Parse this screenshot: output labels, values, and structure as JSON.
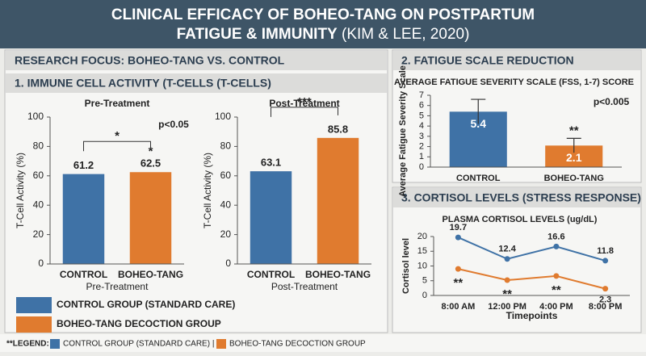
{
  "title": [
    "CLINICAL EFFICACY OF BOHEO-TANG ON POSTPARTUM",
    "FATIGUE & IMMUNITY"
  ],
  "citation": "(KIM & LEE, 2020)",
  "research_focus": "RESEARCH FOCUS: BOHEO-TANG VS. CONTROL",
  "sections": [
    "1. IMMUNE CELL ACTIVITY (T-CELLS (T-CELLS)",
    "2. FATIGUE SCALE REDUCTION",
    "3. CORTISOL LEVELS (STRESS RESPONSE)"
  ],
  "legend": {
    "items": [
      {
        "label": "CONTROL GROUP (STANDARD CARE)",
        "color": "#3f72a6"
      },
      {
        "label": "BOHEO-TANG DECOCTION GROUP",
        "color": "#e07b2f"
      }
    ]
  },
  "footer_legend": {
    "title": "**LEGEND:",
    "items": [
      "CONTROL GROUP (STANDARD CARE) |",
      "BOHEO-TANG DECOCTION GROUP"
    ]
  },
  "chart_data": [
    {
      "type": "bar",
      "title": "Pre-Treatment",
      "xlabel": "Pre-Treatment",
      "ylabel": "T-Cell Activity (%)",
      "categories": [
        "CONTROL",
        "BOHEO-TANG"
      ],
      "values": [
        61.2,
        62.5
      ],
      "colors": [
        "#3f72a6",
        "#e07b2f"
      ],
      "ylim": [
        0,
        100
      ],
      "yticks": [
        0,
        20,
        40,
        60,
        80,
        100
      ],
      "annotation": "p<0.05",
      "bracket_label": "*",
      "significance": [
        null,
        "*"
      ],
      "value_label_position": "outside"
    },
    {
      "type": "bar",
      "title": "Post-Treatment",
      "xlabel": "Post-Treatment",
      "ylabel": "T-Cell Activity (%)",
      "categories": [
        "CONTROL",
        "BOHEO-TANG"
      ],
      "values": [
        63.1,
        85.8
      ],
      "colors": [
        "#3f72a6",
        "#e07b2f"
      ],
      "ylim": [
        0,
        100
      ],
      "yticks": [
        0,
        20,
        40,
        60,
        80,
        100
      ],
      "bracket_label": "***",
      "value_label_position": "outside"
    },
    {
      "type": "bar",
      "title": "AVERAGE FATIGUE SEVERITY SCALE (FSS, 1-7) SCORE",
      "ylabel": "Average Fatigue Severity Scale",
      "categories": [
        "CONTROL",
        "BOHEO-TANG"
      ],
      "values": [
        5.4,
        2.1
      ],
      "errors": [
        1.2,
        0.7
      ],
      "colors": [
        "#3f72a6",
        "#e07b2f"
      ],
      "ylim": [
        0,
        7
      ],
      "yticks": [
        0,
        1,
        2,
        3,
        4,
        5,
        6,
        7
      ],
      "annotation": "p<0.005",
      "significance": [
        null,
        "**"
      ],
      "value_label_position": "inside"
    },
    {
      "type": "line",
      "title": "PLASMA CORTISOL LEVELS (ug/dL)",
      "xlabel": "Timepoints",
      "ylabel": "Cortisol level",
      "categories": [
        "8:00 AM",
        "12:00 PM",
        "4:00 PM",
        "8:00 PM"
      ],
      "ylim": [
        0,
        20
      ],
      "yticks": [
        0,
        5,
        10,
        15,
        20
      ],
      "series": [
        {
          "name": "CONTROL",
          "color": "#3f72a6",
          "values": [
            19.7,
            12.4,
            16.6,
            11.8
          ]
        },
        {
          "name": "BOHEO-TANG",
          "color": "#e07b2f",
          "values": [
            9,
            5.2,
            6.6,
            2.3
          ],
          "value_labels": [
            null,
            null,
            null,
            "2.3"
          ],
          "significance": [
            "**",
            "**",
            "**",
            null
          ]
        }
      ]
    }
  ]
}
